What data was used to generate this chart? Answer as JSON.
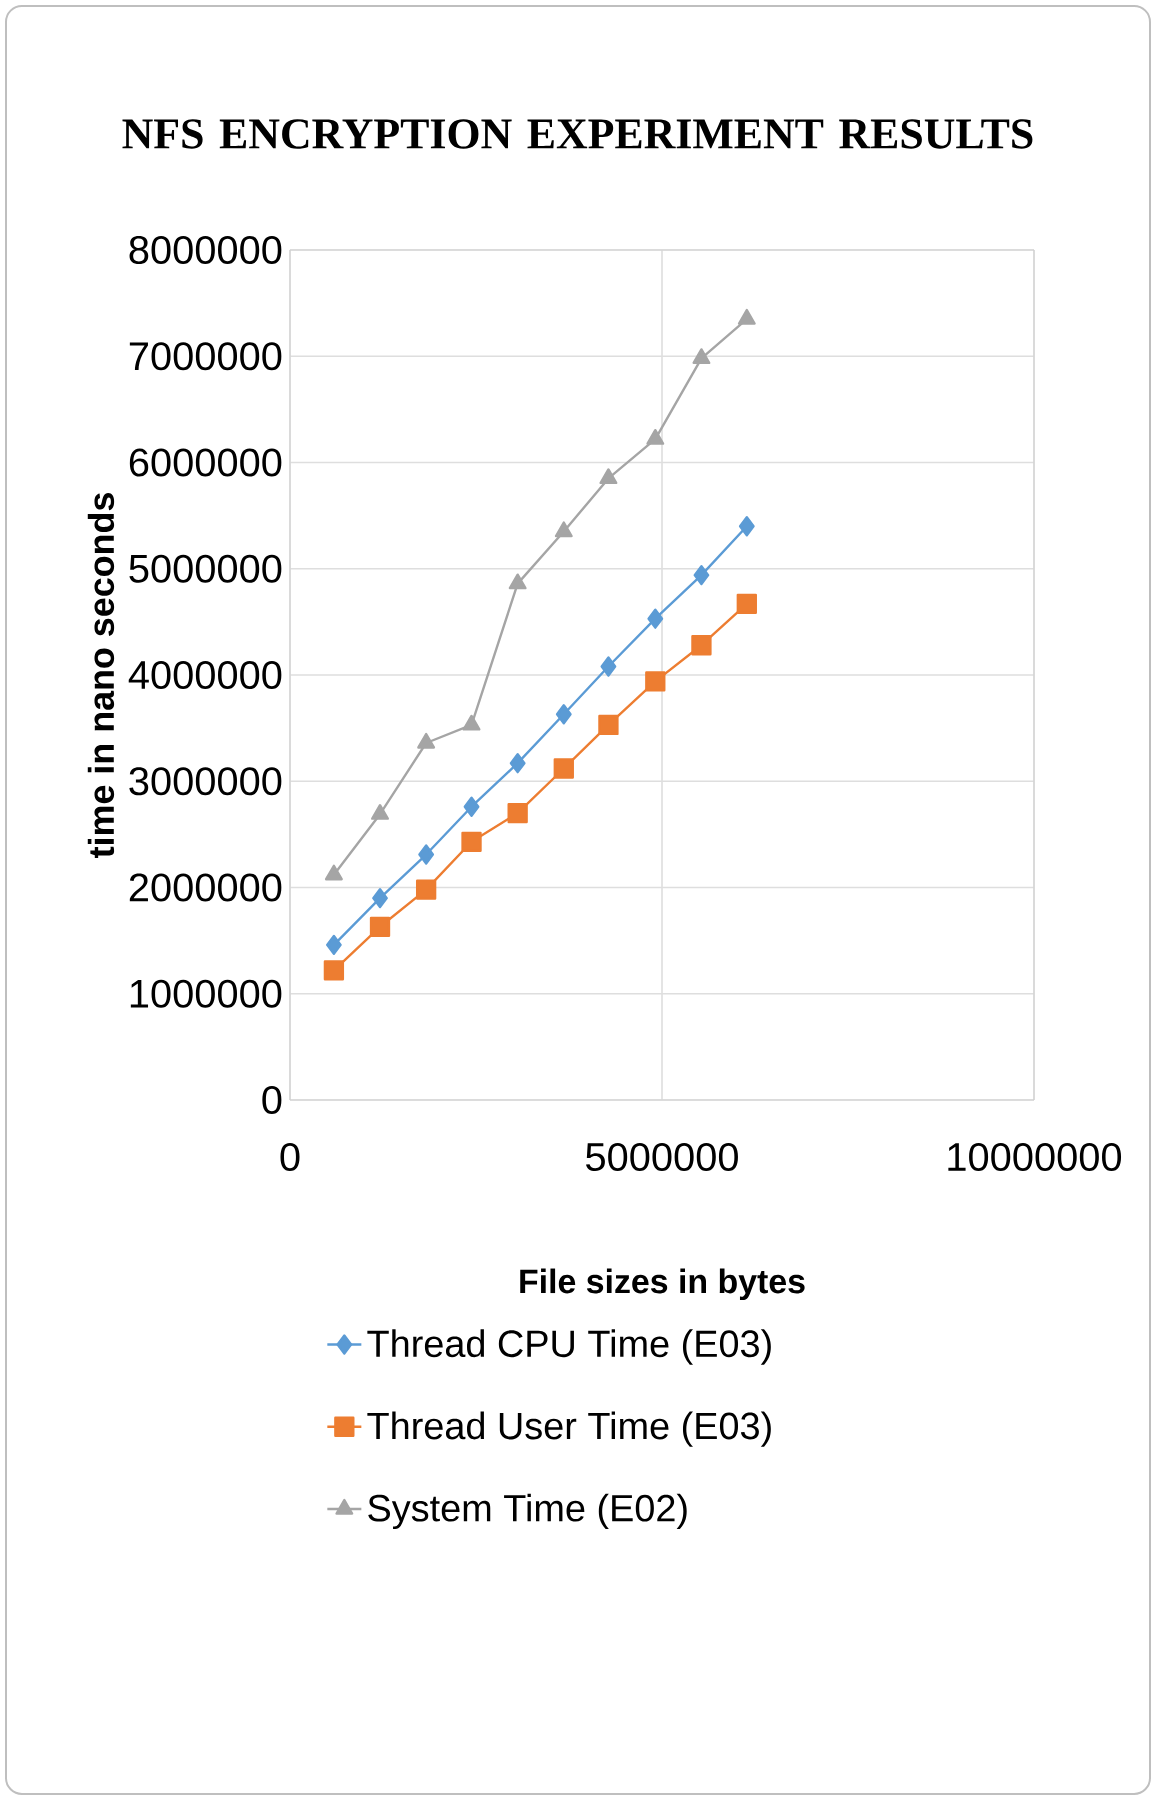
{
  "chart_data": {
    "type": "line",
    "title": "NFS ENCRYPTION EXPERIMENT RESULTS",
    "xlabel": "File sizes in bytes",
    "ylabel": "time in nano seconds",
    "x": [
      590000,
      1210000,
      1830000,
      2440000,
      3060000,
      3680000,
      4280000,
      4910000,
      5530000,
      6140000
    ],
    "series": [
      {
        "name": "Thread CPU Time (E03)",
        "color": "#5b9bd5",
        "marker": "diamond",
        "values": [
          1460000,
          1900000,
          2310000,
          2760000,
          3170000,
          3630000,
          4080000,
          4530000,
          4940000,
          5400000
        ]
      },
      {
        "name": "Thread User Time (E03)",
        "color": "#ed7d31",
        "marker": "square",
        "values": [
          1220000,
          1630000,
          1980000,
          2430000,
          2700000,
          3120000,
          3530000,
          3940000,
          4280000,
          4670000
        ]
      },
      {
        "name": "System Time (E02)",
        "color": "#a5a5a5",
        "marker": "triangle",
        "values": [
          2120000,
          2690000,
          3360000,
          3530000,
          4860000,
          5350000,
          5850000,
          6220000,
          6980000,
          7350000
        ]
      }
    ],
    "xlim": [
      0,
      10000000
    ],
    "xticks": [
      0,
      5000000,
      10000000
    ],
    "ylim": [
      0,
      8000000
    ],
    "yticks": [
      0,
      1000000,
      2000000,
      3000000,
      4000000,
      5000000,
      6000000,
      7000000,
      8000000
    ],
    "grid": true,
    "legend": "bottom",
    "line_style": "solid"
  }
}
